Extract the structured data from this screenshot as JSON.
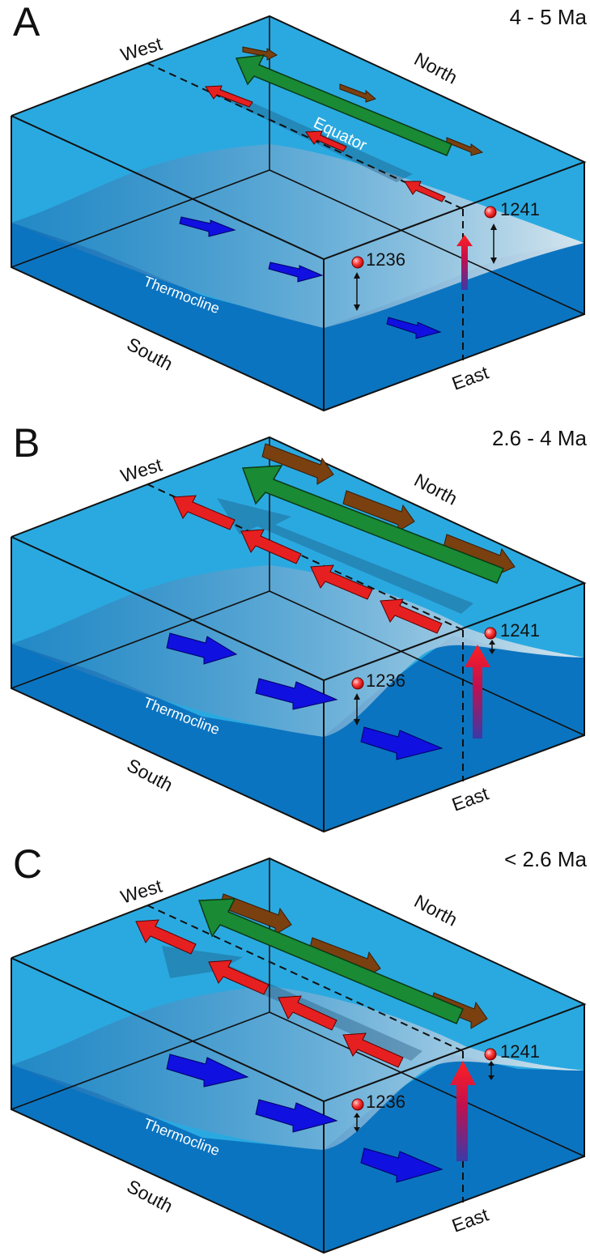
{
  "labels": {
    "west": "West",
    "north": "North",
    "south": "South",
    "east": "East",
    "equator": "Equator",
    "thermocline": "Thermocline",
    "site_a": "1236",
    "site_b": "1241"
  },
  "panels": [
    {
      "letter": "A",
      "age": "4 - 5 Ma"
    },
    {
      "letter": "B",
      "age": "2.6 - 4 Ma"
    },
    {
      "letter": "C",
      "age": "< 2.6 Ma"
    }
  ],
  "colors": {
    "surface": "#2aa9e0",
    "front": "#0b74c0",
    "thermocline_sheet": "#cfe3ee",
    "trade_wind": "#1a8a35",
    "surface_current": "#e62020",
    "undercurrent": "#1010e0",
    "wind_component": "#7a4010",
    "upwelling": "#ff1010"
  },
  "icons": [
    "trade-wind-arrow",
    "surface-current-arrow",
    "undercurrent-arrow",
    "meridional-wind-arrow",
    "upwelling-arrow",
    "site-marker"
  ]
}
